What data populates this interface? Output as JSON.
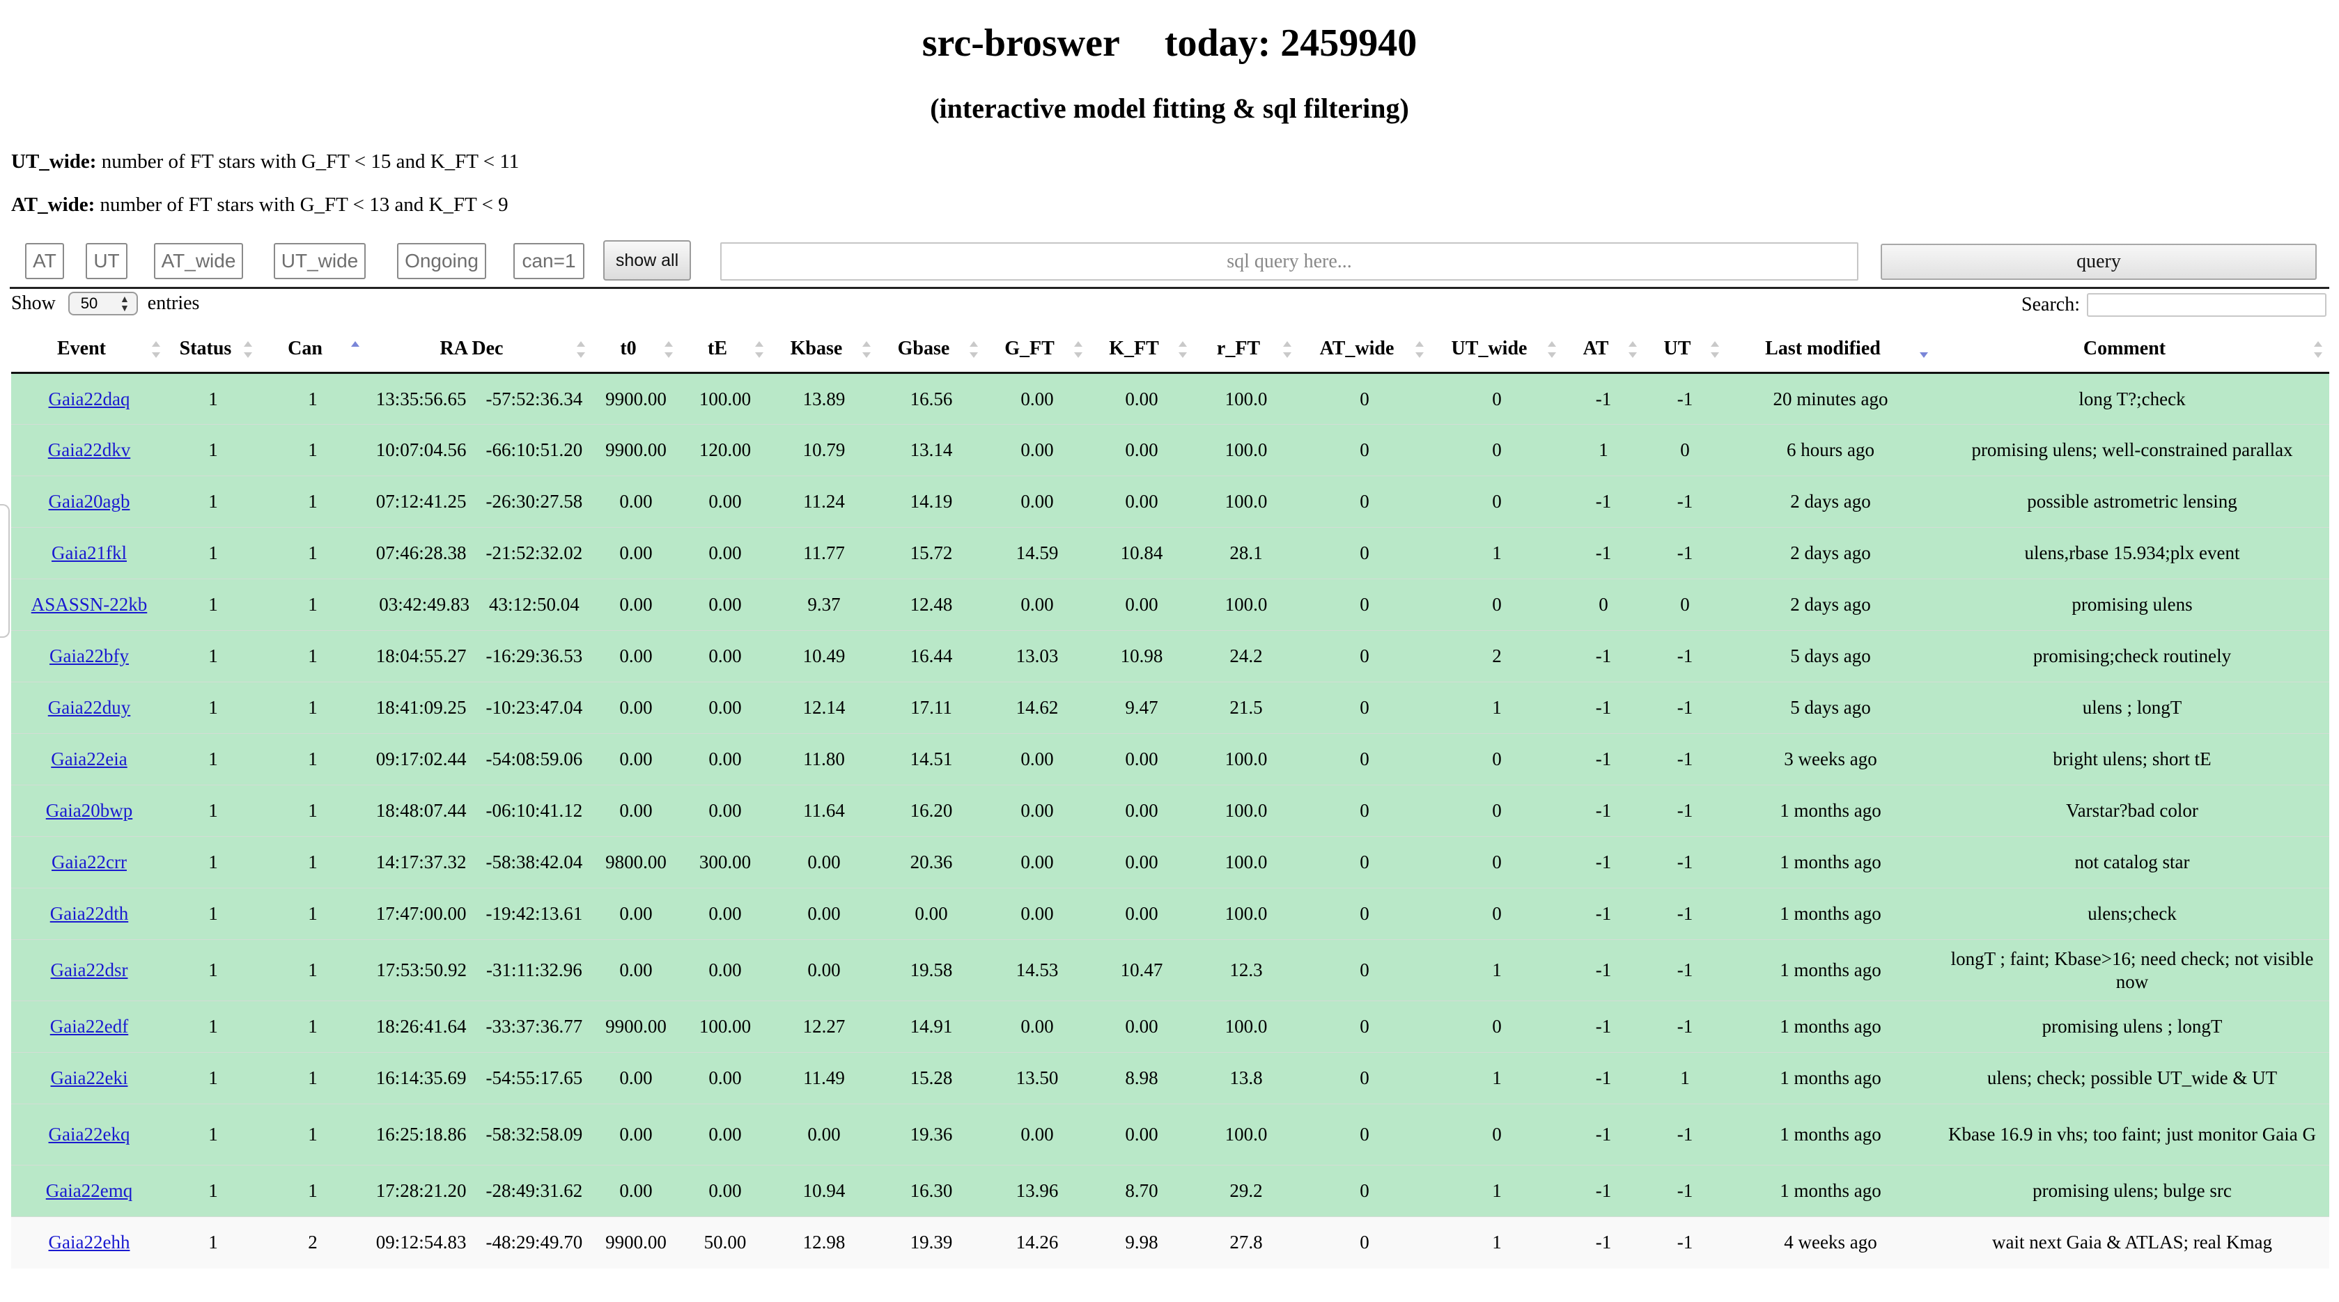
{
  "header": {
    "title": "src-broswer",
    "today": "today: 2459940",
    "subtitle": "(interactive model fitting & sql filtering)"
  },
  "notes": {
    "ut_wide_label": "UT_wide:",
    "ut_wide_text": "number of FT stars with G_FT < 15 and K_FT < 11",
    "at_wide_label": "AT_wide:",
    "at_wide_text": "number of FT stars with G_FT < 13 and K_FT < 9"
  },
  "filters": {
    "at": "AT",
    "ut": "UT",
    "at_wide": "AT_wide",
    "ut_wide": "UT_wide",
    "ongoing": "Ongoing",
    "can1": "can=1",
    "show_all": "show all"
  },
  "query": {
    "placeholder": "sql query here...",
    "button": "query"
  },
  "table_controls": {
    "show_label": "Show",
    "page_size": "50",
    "entries_label": "entries",
    "search_label": "Search:"
  },
  "table": {
    "columns": [
      "Event",
      "Status",
      "Can",
      "RA Dec",
      "t0",
      "tE",
      "Kbase",
      "Gbase",
      "G_FT",
      "K_FT",
      "r_FT",
      "AT_wide",
      "UT_wide",
      "AT",
      "UT",
      "Last modified",
      "Comment"
    ],
    "rows": [
      {
        "event": "Gaia22daq",
        "status": "1",
        "can": "1",
        "ra": "13:35:56.65",
        "dec": "-57:52:36.34",
        "t0": "9900.00",
        "te": "100.00",
        "kbase": "13.89",
        "gbase": "16.56",
        "gft": "0.00",
        "kft": "0.00",
        "rft": "100.0",
        "at_wide": "0",
        "ut_wide": "0",
        "at": "-1",
        "ut": "-1",
        "modified": "20 minutes ago",
        "comment": "long T?;check"
      },
      {
        "event": "Gaia22dkv",
        "status": "1",
        "can": "1",
        "ra": "10:07:04.56",
        "dec": "-66:10:51.20",
        "t0": "9900.00",
        "te": "120.00",
        "kbase": "10.79",
        "gbase": "13.14",
        "gft": "0.00",
        "kft": "0.00",
        "rft": "100.0",
        "at_wide": "0",
        "ut_wide": "0",
        "at": "1",
        "ut": "0",
        "modified": "6 hours ago",
        "comment": "promising ulens; well-constrained parallax"
      },
      {
        "event": "Gaia20agb",
        "status": "1",
        "can": "1",
        "ra": "07:12:41.25",
        "dec": "-26:30:27.58",
        "t0": "0.00",
        "te": "0.00",
        "kbase": "11.24",
        "gbase": "14.19",
        "gft": "0.00",
        "kft": "0.00",
        "rft": "100.0",
        "at_wide": "0",
        "ut_wide": "0",
        "at": "-1",
        "ut": "-1",
        "modified": "2 days ago",
        "comment": "possible astrometric lensing"
      },
      {
        "event": "Gaia21fkl",
        "status": "1",
        "can": "1",
        "ra": "07:46:28.38",
        "dec": "-21:52:32.02",
        "t0": "0.00",
        "te": "0.00",
        "kbase": "11.77",
        "gbase": "15.72",
        "gft": "14.59",
        "kft": "10.84",
        "rft": "28.1",
        "at_wide": "0",
        "ut_wide": "1",
        "at": "-1",
        "ut": "-1",
        "modified": "2 days ago",
        "comment": "ulens,rbase 15.934;plx event"
      },
      {
        "event": "ASASSN-22kb",
        "status": "1",
        "can": "1",
        "ra": "03:42:49.83",
        "dec": "43:12:50.04",
        "t0": "0.00",
        "te": "0.00",
        "kbase": "9.37",
        "gbase": "12.48",
        "gft": "0.00",
        "kft": "0.00",
        "rft": "100.0",
        "at_wide": "0",
        "ut_wide": "0",
        "at": "0",
        "ut": "0",
        "modified": "2 days ago",
        "comment": "promising ulens"
      },
      {
        "event": "Gaia22bfy",
        "status": "1",
        "can": "1",
        "ra": "18:04:55.27",
        "dec": "-16:29:36.53",
        "t0": "0.00",
        "te": "0.00",
        "kbase": "10.49",
        "gbase": "16.44",
        "gft": "13.03",
        "kft": "10.98",
        "rft": "24.2",
        "at_wide": "0",
        "ut_wide": "2",
        "at": "-1",
        "ut": "-1",
        "modified": "5 days ago",
        "comment": "promising;check routinely"
      },
      {
        "event": "Gaia22duy",
        "status": "1",
        "can": "1",
        "ra": "18:41:09.25",
        "dec": "-10:23:47.04",
        "t0": "0.00",
        "te": "0.00",
        "kbase": "12.14",
        "gbase": "17.11",
        "gft": "14.62",
        "kft": "9.47",
        "rft": "21.5",
        "at_wide": "0",
        "ut_wide": "1",
        "at": "-1",
        "ut": "-1",
        "modified": "5 days ago",
        "comment": "ulens ; longT"
      },
      {
        "event": "Gaia22eia",
        "status": "1",
        "can": "1",
        "ra": "09:17:02.44",
        "dec": "-54:08:59.06",
        "t0": "0.00",
        "te": "0.00",
        "kbase": "11.80",
        "gbase": "14.51",
        "gft": "0.00",
        "kft": "0.00",
        "rft": "100.0",
        "at_wide": "0",
        "ut_wide": "0",
        "at": "-1",
        "ut": "-1",
        "modified": "3 weeks ago",
        "comment": "bright ulens; short tE"
      },
      {
        "event": "Gaia20bwp",
        "status": "1",
        "can": "1",
        "ra": "18:48:07.44",
        "dec": "-06:10:41.12",
        "t0": "0.00",
        "te": "0.00",
        "kbase": "11.64",
        "gbase": "16.20",
        "gft": "0.00",
        "kft": "0.00",
        "rft": "100.0",
        "at_wide": "0",
        "ut_wide": "0",
        "at": "-1",
        "ut": "-1",
        "modified": "1 months ago",
        "comment": "Varstar?bad color"
      },
      {
        "event": "Gaia22crr",
        "status": "1",
        "can": "1",
        "ra": "14:17:37.32",
        "dec": "-58:38:42.04",
        "t0": "9800.00",
        "te": "300.00",
        "kbase": "0.00",
        "gbase": "20.36",
        "gft": "0.00",
        "kft": "0.00",
        "rft": "100.0",
        "at_wide": "0",
        "ut_wide": "0",
        "at": "-1",
        "ut": "-1",
        "modified": "1 months ago",
        "comment": "not catalog star"
      },
      {
        "event": "Gaia22dth",
        "status": "1",
        "can": "1",
        "ra": "17:47:00.00",
        "dec": "-19:42:13.61",
        "t0": "0.00",
        "te": "0.00",
        "kbase": "0.00",
        "gbase": "0.00",
        "gft": "0.00",
        "kft": "0.00",
        "rft": "100.0",
        "at_wide": "0",
        "ut_wide": "0",
        "at": "-1",
        "ut": "-1",
        "modified": "1 months ago",
        "comment": "ulens;check"
      },
      {
        "event": "Gaia22dsr",
        "status": "1",
        "can": "1",
        "ra": "17:53:50.92",
        "dec": "-31:11:32.96",
        "t0": "0.00",
        "te": "0.00",
        "kbase": "0.00",
        "gbase": "19.58",
        "gft": "14.53",
        "kft": "10.47",
        "rft": "12.3",
        "at_wide": "0",
        "ut_wide": "1",
        "at": "-1",
        "ut": "-1",
        "modified": "1 months ago",
        "comment": "longT ; faint; Kbase>16; need check; not visible now"
      },
      {
        "event": "Gaia22edf",
        "status": "1",
        "can": "1",
        "ra": "18:26:41.64",
        "dec": "-33:37:36.77",
        "t0": "9900.00",
        "te": "100.00",
        "kbase": "12.27",
        "gbase": "14.91",
        "gft": "0.00",
        "kft": "0.00",
        "rft": "100.0",
        "at_wide": "0",
        "ut_wide": "0",
        "at": "-1",
        "ut": "-1",
        "modified": "1 months ago",
        "comment": "promising ulens ; longT"
      },
      {
        "event": "Gaia22eki",
        "status": "1",
        "can": "1",
        "ra": "16:14:35.69",
        "dec": "-54:55:17.65",
        "t0": "0.00",
        "te": "0.00",
        "kbase": "11.49",
        "gbase": "15.28",
        "gft": "13.50",
        "kft": "8.98",
        "rft": "13.8",
        "at_wide": "0",
        "ut_wide": "1",
        "at": "-1",
        "ut": "1",
        "modified": "1 months ago",
        "comment": "ulens; check; possible UT_wide & UT"
      },
      {
        "event": "Gaia22ekq",
        "status": "1",
        "can": "1",
        "ra": "16:25:18.86",
        "dec": "-58:32:58.09",
        "t0": "0.00",
        "te": "0.00",
        "kbase": "0.00",
        "gbase": "19.36",
        "gft": "0.00",
        "kft": "0.00",
        "rft": "100.0",
        "at_wide": "0",
        "ut_wide": "0",
        "at": "-1",
        "ut": "-1",
        "modified": "1 months ago",
        "comment": "Kbase 16.9 in vhs; too faint; just monitor Gaia G"
      },
      {
        "event": "Gaia22emq",
        "status": "1",
        "can": "1",
        "ra": "17:28:21.20",
        "dec": "-28:49:31.62",
        "t0": "0.00",
        "te": "0.00",
        "kbase": "10.94",
        "gbase": "16.30",
        "gft": "13.96",
        "kft": "8.70",
        "rft": "29.2",
        "at_wide": "0",
        "ut_wide": "1",
        "at": "-1",
        "ut": "-1",
        "modified": "1 months ago",
        "comment": "promising ulens; bulge src"
      },
      {
        "event": "Gaia22ehh",
        "status": "1",
        "can": "2",
        "ra": "09:12:54.83",
        "dec": "-48:29:49.70",
        "t0": "9900.00",
        "te": "50.00",
        "kbase": "12.98",
        "gbase": "19.39",
        "gft": "14.26",
        "kft": "9.98",
        "rft": "27.8",
        "at_wide": "0",
        "ut_wide": "1",
        "at": "-1",
        "ut": "-1",
        "modified": "4 weeks ago",
        "comment": "wait next Gaia & ATLAS; real Kmag"
      }
    ]
  },
  "colors": {
    "row_can1": "#b9e8c8",
    "row_other": "#f9f9f9",
    "link": "#1a1ad0",
    "sort_active": "#7a86d8"
  },
  "icons": {
    "sort": "sort-arrows-icon",
    "select": "select-arrows-icon"
  }
}
